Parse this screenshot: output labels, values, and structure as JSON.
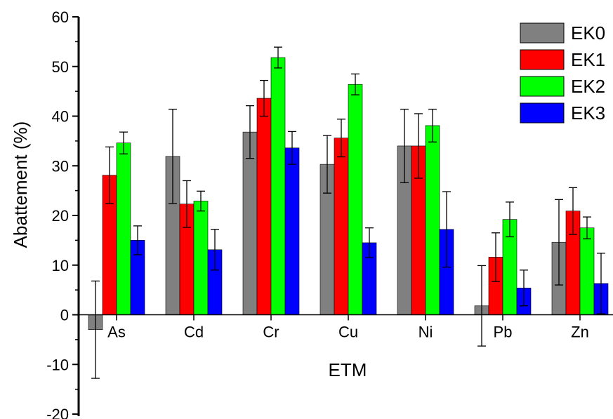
{
  "chart_data": {
    "type": "bar",
    "xlabel": "ETM",
    "ylabel": "Abattement (%)",
    "ylim": [
      -20,
      60
    ],
    "y_ticks": [
      "-20",
      "-10",
      "0",
      "10",
      "20",
      "30",
      "40",
      "50",
      "60"
    ],
    "categories": [
      "As",
      "Cd",
      "Cr",
      "Cu",
      "Ni",
      "Pb",
      "Zn"
    ],
    "error_bars": true,
    "legend_position": "top-right",
    "series": [
      {
        "name": "EK0",
        "color": "#808080",
        "values": [
          -3.0,
          31.9,
          36.8,
          30.3,
          34.0,
          1.8,
          14.6
        ],
        "errors": [
          9.8,
          9.5,
          5.3,
          5.8,
          7.4,
          8.1,
          8.6
        ]
      },
      {
        "name": "EK1",
        "color": "#ff0000",
        "values": [
          28.1,
          22.3,
          43.6,
          35.6,
          34.0,
          11.6,
          20.9
        ],
        "errors": [
          5.7,
          4.7,
          3.6,
          3.8,
          6.5,
          4.9,
          4.7
        ]
      },
      {
        "name": "EK2",
        "color": "#00ff00",
        "values": [
          34.6,
          22.9,
          51.8,
          46.4,
          38.1,
          19.2,
          17.5
        ],
        "errors": [
          2.2,
          2.0,
          2.1,
          2.1,
          3.3,
          3.5,
          2.2
        ]
      },
      {
        "name": "EK3",
        "color": "#0000ff",
        "values": [
          15.0,
          13.1,
          33.6,
          14.5,
          17.2,
          5.4,
          6.3
        ],
        "errors": [
          2.9,
          4.1,
          3.3,
          3.0,
          7.6,
          3.6,
          6.1
        ]
      }
    ]
  }
}
